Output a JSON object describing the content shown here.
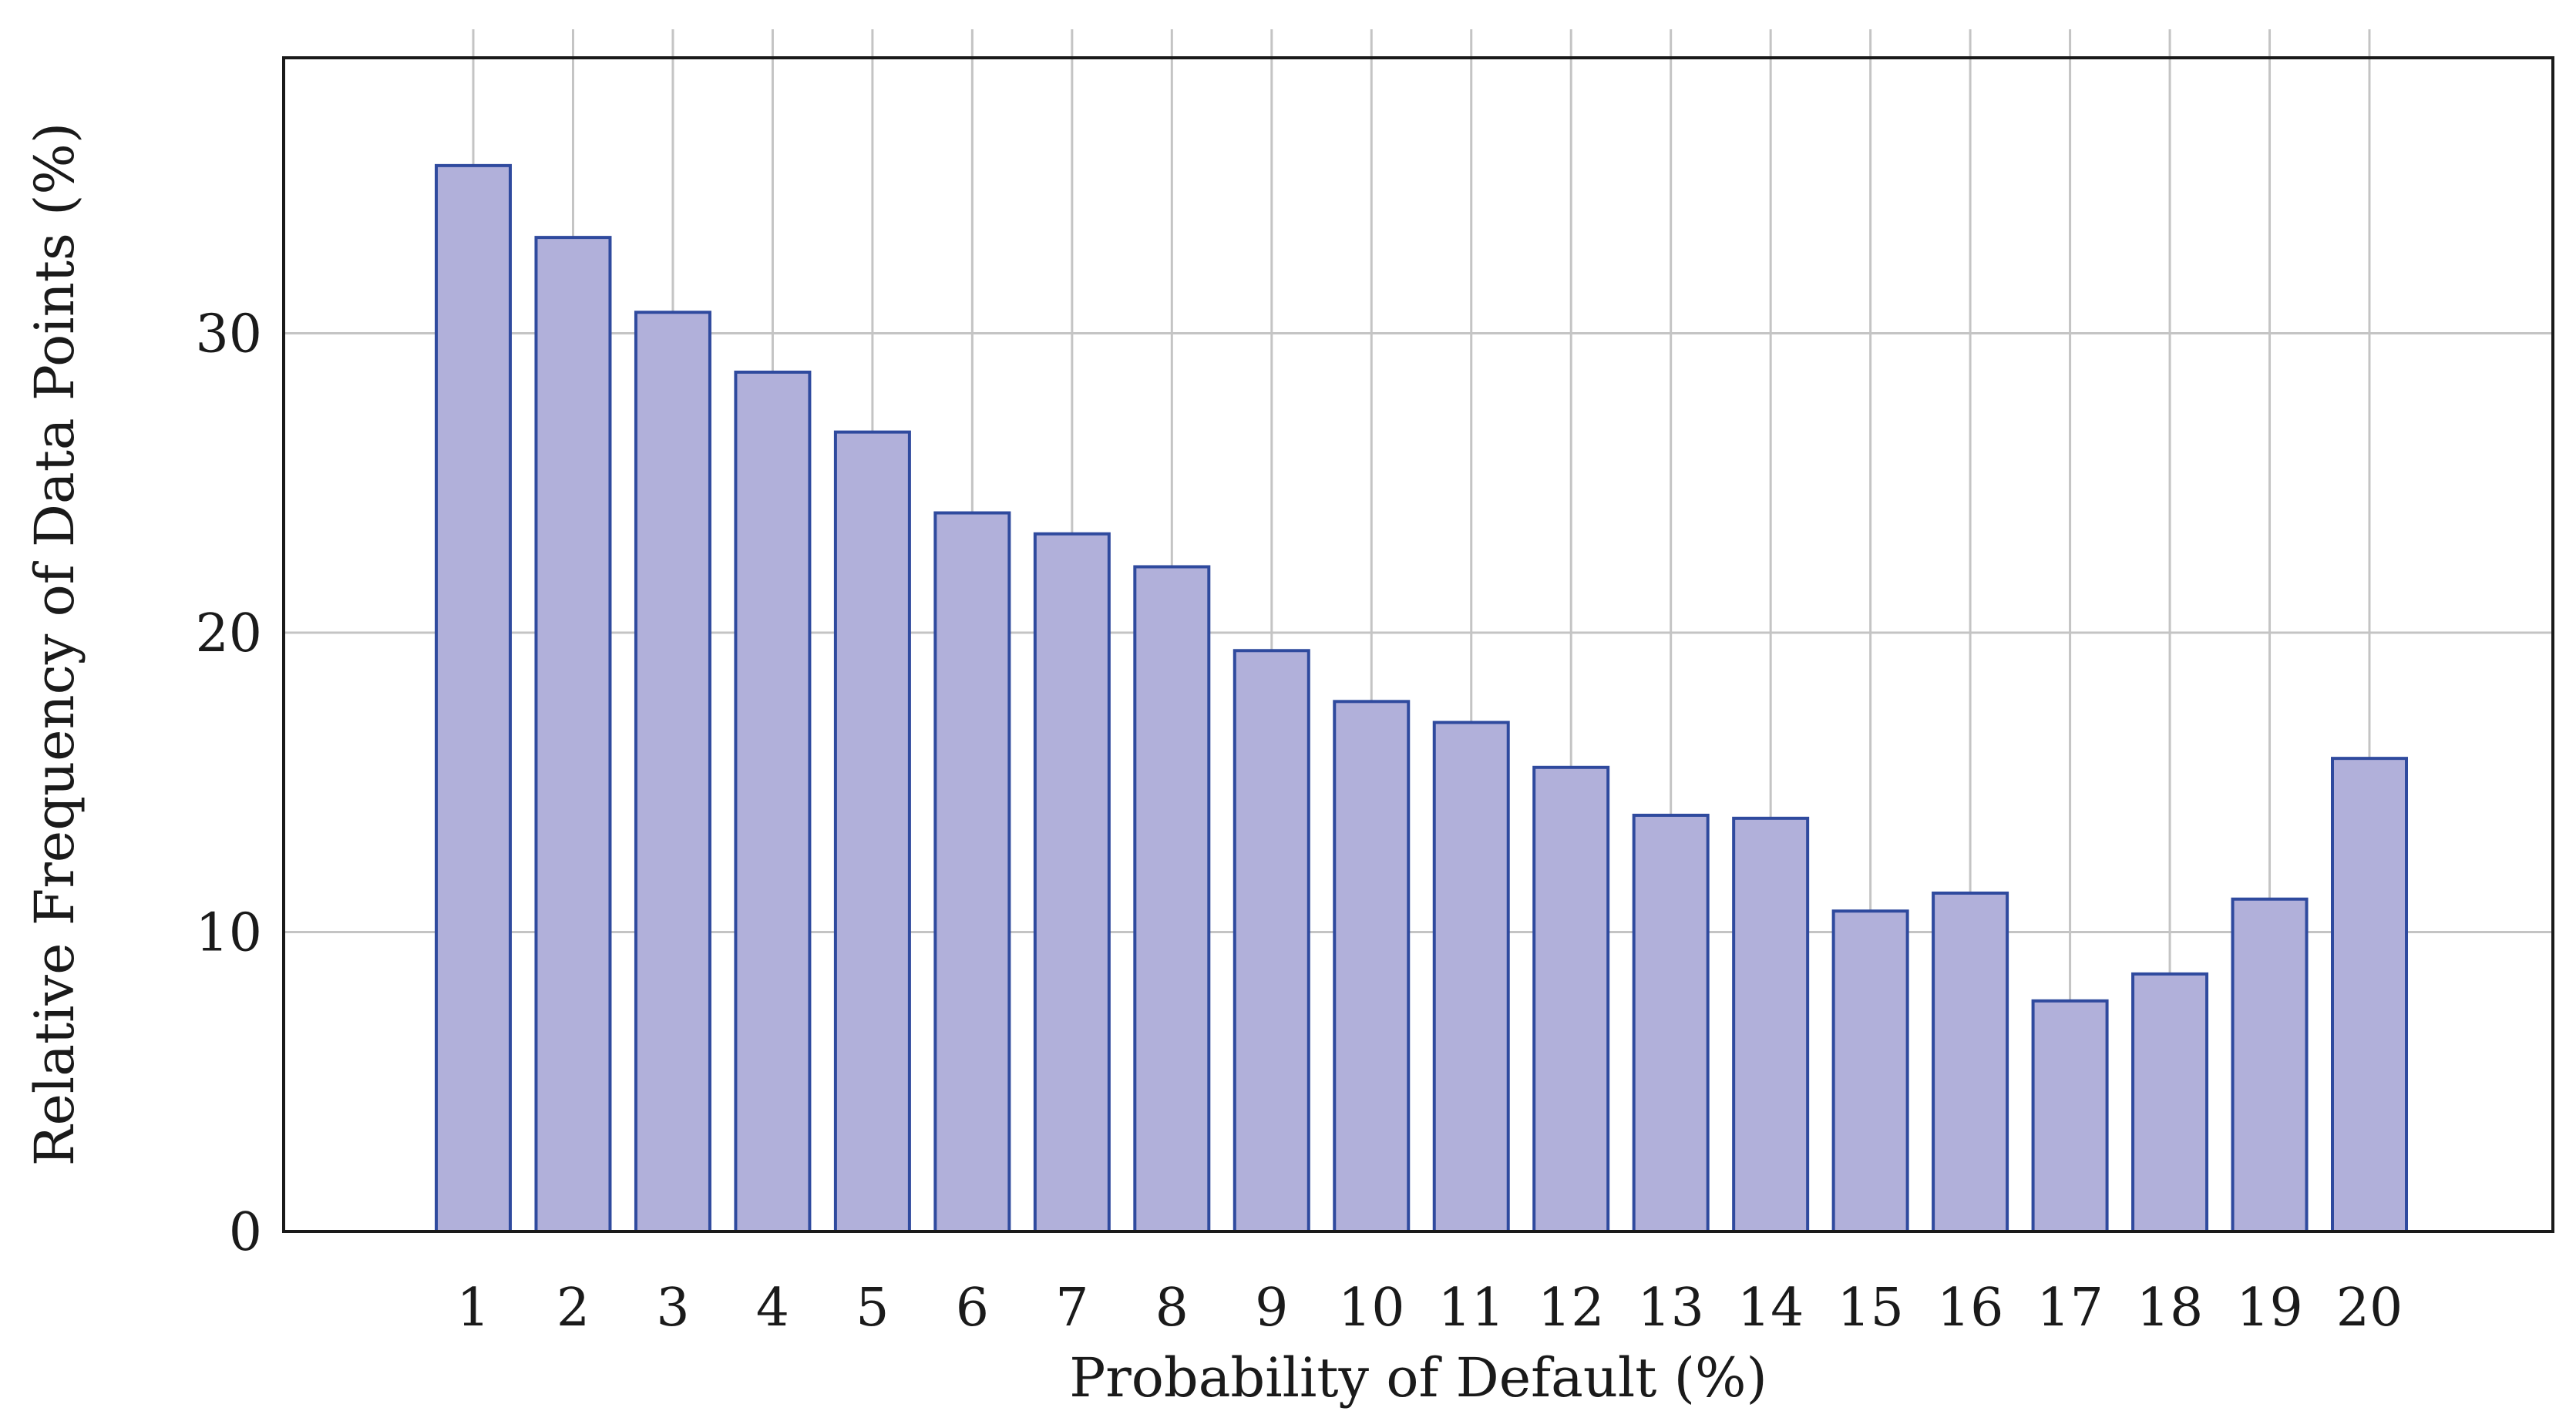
{
  "chart_data": {
    "type": "bar",
    "categories": [
      "1",
      "2",
      "3",
      "4",
      "5",
      "6",
      "7",
      "8",
      "9",
      "10",
      "11",
      "12",
      "13",
      "14",
      "15",
      "16",
      "17",
      "18",
      "19",
      "20"
    ],
    "values": [
      35.6,
      33.2,
      30.7,
      28.7,
      26.7,
      24.0,
      23.3,
      22.2,
      19.4,
      17.7,
      17.0,
      15.5,
      13.9,
      13.8,
      10.7,
      11.3,
      7.7,
      8.6,
      11.1,
      15.8
    ],
    "xlabel": "Probability of Default (%)",
    "ylabel": "Relative Frequency of Data Points (%)",
    "ylim": [
      0,
      39.2
    ],
    "yticks": [
      0,
      10,
      20,
      30
    ],
    "grid": true,
    "colors": {
      "bar_fill": "#b1b0da",
      "bar_stroke": "#2f4a9e",
      "grid": "#c4c4c4",
      "axis": "#1a1a1a"
    }
  }
}
